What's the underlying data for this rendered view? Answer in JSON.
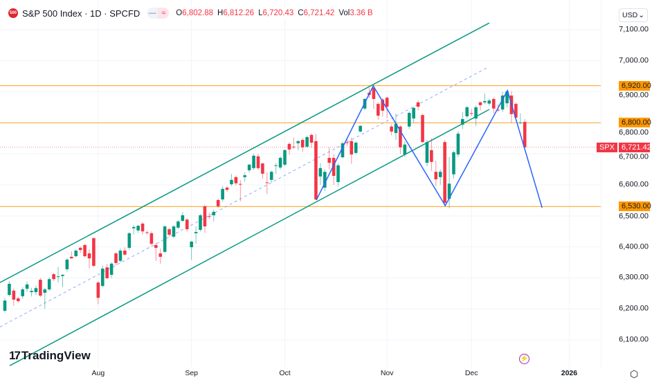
{
  "header": {
    "logo_text": "500",
    "title": "S&P 500 Index · 1D · SPCFD",
    "pill_left": "—",
    "pill_right": "≈",
    "o_label": "O",
    "o_value": "6,802.88",
    "h_label": "H",
    "h_value": "6,812.26",
    "l_label": "L",
    "l_value": "6,720.43",
    "c_label": "C",
    "c_value": "6,721.42",
    "vol_label": "Vol",
    "vol_value": "3.36 B"
  },
  "currency": {
    "label": "USD",
    "chevron": "⌄"
  },
  "branding": {
    "name": "TradingView",
    "mark": "17"
  },
  "icons": {
    "bolt": "⚡",
    "settings": "⬡"
  },
  "colors": {
    "up": "#089981",
    "down": "#f23645",
    "zigzag": "#2962ff",
    "channel": "#089981",
    "median": "#8fa6ff",
    "level": "#ff9800",
    "grid": "#f0f3fa"
  },
  "chart_data": {
    "type": "candlestick",
    "title": "S&P 500 Index · 1D · SPCFD",
    "xlim": [
      -1.09,
      134.1
    ],
    "ylim": [
      6013,
      7196
    ],
    "x_ticks": [
      {
        "index": 21,
        "label": "Aug"
      },
      {
        "index": 42,
        "label": "Sep"
      },
      {
        "index": 63,
        "label": "Oct"
      },
      {
        "index": 86,
        "label": "Nov"
      },
      {
        "index": 105,
        "label": "Dec"
      },
      {
        "index": 127,
        "label": "2026",
        "bold": true
      }
    ],
    "y_ticks": [
      {
        "value": 7100,
        "label": "7,100.00"
      },
      {
        "value": 7000,
        "label": "7,000.00"
      },
      {
        "value": 6900,
        "label": "6,900.00"
      },
      {
        "value": 6800,
        "label": "6,800.00"
      },
      {
        "value": 6700,
        "label": "6,700.00"
      },
      {
        "value": 6600,
        "label": "6,600.00"
      },
      {
        "value": 6500,
        "label": "6,500.00"
      },
      {
        "value": 6400,
        "label": "6,400.00"
      },
      {
        "value": 6300,
        "label": "6,300.00"
      },
      {
        "value": 6200,
        "label": "6,200.00"
      },
      {
        "value": 6100,
        "label": "6,100.00"
      }
    ],
    "levels": [
      {
        "value": 6920,
        "label": "6,920.00"
      },
      {
        "value": 6800,
        "label": "6,800.00"
      },
      {
        "value": 6530,
        "label": "6,530.00"
      }
    ],
    "last_price": {
      "value": 6721.42,
      "label": "6,721.42",
      "symbol": "SPX"
    },
    "channel": {
      "upper": [
        [
          -1.1,
          6285
        ],
        [
          109,
          7122
        ]
      ],
      "lower": [
        [
          1.1,
          6017
        ],
        [
          109,
          6843
        ]
      ],
      "median": [
        [
          -1.1,
          6142
        ],
        [
          108.7,
          6979
        ]
      ]
    },
    "zigzag": [
      [
        70.1,
        6551
      ],
      [
        82.9,
        6919
      ],
      [
        99.1,
        6533
      ],
      [
        113.1,
        6904
      ],
      [
        120.9,
        6526
      ]
    ],
    "ohlc": [
      [
        6194,
        6235,
        6188,
        6227
      ],
      [
        6245,
        6290,
        6240,
        6281
      ],
      [
        6259,
        6266,
        6210,
        6230
      ],
      [
        6234,
        6240,
        6220,
        6225
      ],
      [
        6241,
        6270,
        6233,
        6263
      ],
      [
        6265,
        6288,
        6255,
        6279
      ],
      [
        6254,
        6268,
        6240,
        6258
      ],
      [
        6254,
        6275,
        6245,
        6267
      ],
      [
        6294,
        6300,
        6238,
        6243
      ],
      [
        6252,
        6268,
        6200,
        6263
      ],
      [
        6263,
        6302,
        6258,
        6296
      ],
      [
        6312,
        6316,
        6290,
        6296
      ],
      [
        6303,
        6335,
        6285,
        6305
      ],
      [
        6306,
        6312,
        6270,
        6310
      ],
      [
        6328,
        6364,
        6320,
        6359
      ],
      [
        6368,
        6385,
        6362,
        6363
      ],
      [
        6370,
        6392,
        6366,
        6388
      ],
      [
        6397,
        6401,
        6380,
        6390
      ],
      [
        6406,
        6410,
        6366,
        6370
      ],
      [
        6379,
        6392,
        6330,
        6363
      ],
      [
        6428,
        6430,
        6334,
        6339
      ],
      [
        6285,
        6290,
        6215,
        6236
      ],
      [
        6274,
        6340,
        6270,
        6330
      ],
      [
        6334,
        6345,
        6296,
        6299
      ],
      [
        6310,
        6350,
        6300,
        6346
      ],
      [
        6379,
        6383,
        6340,
        6348
      ],
      [
        6355,
        6395,
        6350,
        6388
      ],
      [
        6388,
        6398,
        6372,
        6375
      ],
      [
        6397,
        6448,
        6390,
        6444
      ],
      [
        6460,
        6470,
        6440,
        6464
      ],
      [
        6453,
        6472,
        6445,
        6468
      ],
      [
        6475,
        6480,
        6440,
        6450
      ],
      [
        6447,
        6452,
        6440,
        6445
      ],
      [
        6444,
        6450,
        6405,
        6410
      ],
      [
        6406,
        6412,
        6355,
        6397
      ],
      [
        6379,
        6395,
        6346,
        6368
      ],
      [
        6384,
        6470,
        6380,
        6466
      ],
      [
        6457,
        6462,
        6434,
        6439
      ],
      [
        6433,
        6470,
        6428,
        6466
      ],
      [
        6462,
        6487,
        6458,
        6482
      ],
      [
        6484,
        6512,
        6480,
        6502
      ],
      [
        6488,
        6492,
        6450,
        6457
      ],
      [
        6399,
        6420,
        6358,
        6417
      ],
      [
        6444,
        6466,
        6410,
        6448
      ],
      [
        6455,
        6506,
        6450,
        6502
      ],
      [
        6531,
        6536,
        6445,
        6466
      ],
      [
        6499,
        6510,
        6490,
        6497
      ],
      [
        6502,
        6520,
        6482,
        6513
      ],
      [
        6551,
        6556,
        6525,
        6531
      ],
      [
        6553,
        6596,
        6546,
        6587
      ],
      [
        6591,
        6596,
        6578,
        6584
      ],
      [
        6602,
        6635,
        6596,
        6616
      ],
      [
        6625,
        6630,
        6598,
        6605
      ],
      [
        6603,
        6615,
        6547,
        6602
      ],
      [
        6625,
        6640,
        6610,
        6631
      ],
      [
        6647,
        6668,
        6640,
        6665
      ],
      [
        6654,
        6700,
        6648,
        6694
      ],
      [
        6692,
        6700,
        6648,
        6654
      ],
      [
        6669,
        6672,
        6620,
        6636
      ],
      [
        6608,
        6640,
        6570,
        6607
      ],
      [
        6616,
        6646,
        6608,
        6642
      ],
      [
        6661,
        6670,
        6635,
        6663
      ],
      [
        6656,
        6692,
        6650,
        6687
      ],
      [
        6665,
        6715,
        6660,
        6712
      ],
      [
        6732,
        6737,
        6698,
        6714
      ],
      [
        6723,
        6752,
        6715,
        6721
      ],
      [
        6734,
        6745,
        6712,
        6741
      ],
      [
        6745,
        6752,
        6706,
        6721
      ],
      [
        6723,
        6758,
        6720,
        6754
      ],
      [
        6761,
        6766,
        6720,
        6736
      ],
      [
        6741,
        6764,
        6551,
        6553
      ],
      [
        6627,
        6670,
        6600,
        6654
      ],
      [
        6591,
        6650,
        6580,
        6642
      ],
      [
        6687,
        6720,
        6650,
        6671
      ],
      [
        6687,
        6698,
        6600,
        6629
      ],
      [
        6609,
        6670,
        6595,
        6663
      ],
      [
        6689,
        6740,
        6685,
        6734
      ],
      [
        6737,
        6750,
        6725,
        6736
      ],
      [
        6741,
        6752,
        6668,
        6698
      ],
      [
        6703,
        6740,
        6698,
        6736
      ],
      [
        6772,
        6794,
        6768,
        6790
      ],
      [
        6846,
        6880,
        6840,
        6877
      ],
      [
        6897,
        6912,
        6880,
        6890
      ],
      [
        6913,
        6920,
        6845,
        6877
      ],
      [
        6861,
        6866,
        6810,
        6823
      ],
      [
        6875,
        6880,
        6820,
        6839
      ],
      [
        6881,
        6885,
        6815,
        6852
      ],
      [
        6788,
        6795,
        6760,
        6772
      ],
      [
        6767,
        6830,
        6745,
        6797
      ],
      [
        6788,
        6792,
        6700,
        6721
      ],
      [
        6698,
        6740,
        6690,
        6730
      ],
      [
        6788,
        6837,
        6780,
        6832
      ],
      [
        6814,
        6852,
        6800,
        6848
      ],
      [
        6866,
        6872,
        6840,
        6852
      ],
      [
        6825,
        6830,
        6735,
        6738
      ],
      [
        6671,
        6745,
        6660,
        6738
      ],
      [
        6712,
        6750,
        6645,
        6674
      ],
      [
        6642,
        6678,
        6596,
        6618
      ],
      [
        6625,
        6650,
        6600,
        6642
      ],
      [
        6738,
        6745,
        6530,
        6542
      ],
      [
        6555,
        6690,
        6525,
        6604
      ],
      [
        6634,
        6710,
        6620,
        6705
      ],
      [
        6698,
        6772,
        6690,
        6765
      ],
      [
        6794,
        6835,
        6780,
        6812
      ],
      [
        6821,
        6855,
        6815,
        6850
      ],
      [
        6831,
        6845,
        6822,
        6830
      ],
      [
        6814,
        6856,
        6790,
        6850
      ],
      [
        6866,
        6870,
        6840,
        6857
      ],
      [
        6866,
        6895,
        6860,
        6870
      ],
      [
        6862,
        6878,
        6855,
        6872
      ],
      [
        6877,
        6882,
        6830,
        6846
      ],
      [
        6842,
        6860,
        6835,
        6841
      ],
      [
        6843,
        6900,
        6835,
        6888
      ],
      [
        6863,
        6906,
        6850,
        6901
      ],
      [
        6888,
        6902,
        6800,
        6828
      ],
      [
        6861,
        6866,
        6805,
        6817
      ],
      [
        6800,
        6830,
        6795,
        6801
      ],
      [
        6802.88,
        6812.26,
        6720.43,
        6721.42
      ]
    ]
  }
}
